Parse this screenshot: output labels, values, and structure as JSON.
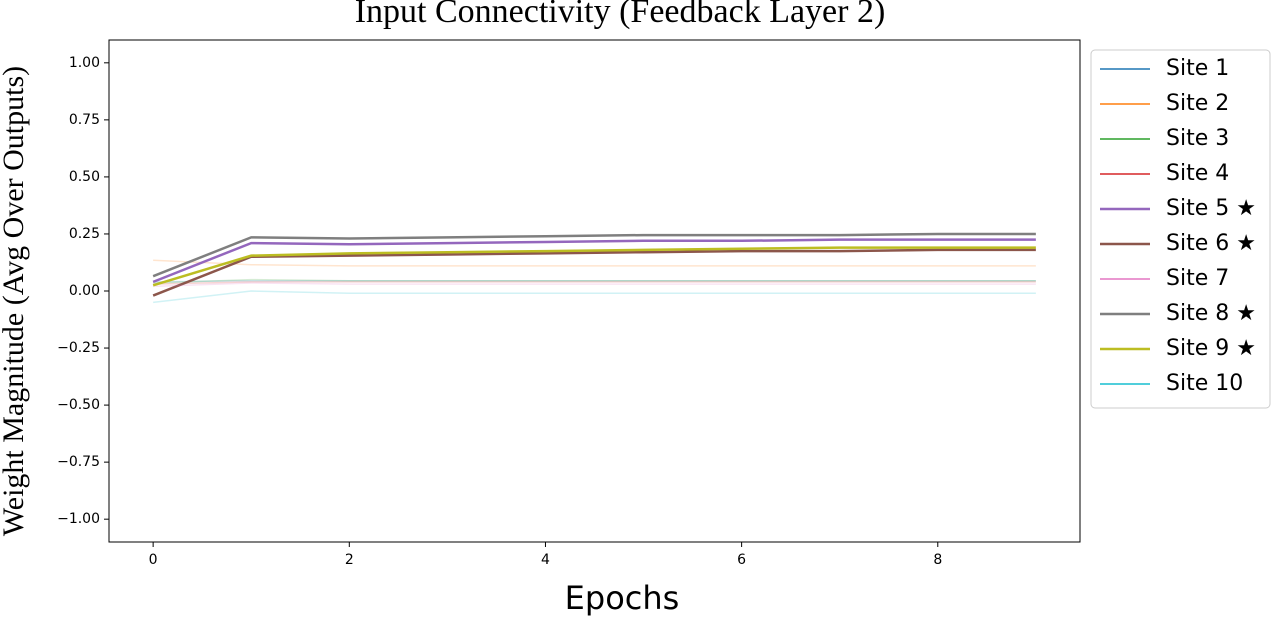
{
  "chart_data": {
    "type": "line",
    "title": "Input Connectivity (Feedback Layer 2)",
    "xlabel": "Epochs",
    "ylabel": "Weight Magnitude (Avg Over Outputs)",
    "x": [
      0,
      1,
      2,
      3,
      4,
      5,
      6,
      7,
      8,
      9
    ],
    "xlim": [
      -0.45,
      9.45
    ],
    "xticks": [
      0,
      2,
      4,
      6,
      8
    ],
    "ylim": [
      -1.1,
      1.1
    ],
    "yticks": [
      {
        "value": -1,
        "label": "−1.00"
      },
      {
        "value": -0.75,
        "label": "−0.75"
      },
      {
        "value": -0.5,
        "label": "−0.50"
      },
      {
        "value": -0.25,
        "label": "−0.25"
      },
      {
        "value": 0,
        "label": "0.00"
      },
      {
        "value": 0.25,
        "label": "0.25"
      },
      {
        "value": 0.5,
        "label": "0.50"
      },
      {
        "value": 0.75,
        "label": "0.75"
      },
      {
        "value": 1,
        "label": "1.00"
      }
    ],
    "legend": "outside-right",
    "series": [
      {
        "name": "Site 1",
        "color": "#1f77b4",
        "alpha": 0.2,
        "values": [
          0.04,
          0.045,
          0.045,
          0.045,
          0.045,
          0.045,
          0.045,
          0.045,
          0.045,
          0.045
        ]
      },
      {
        "name": "Site 2",
        "color": "#ff7f0e",
        "alpha": 0.2,
        "values": [
          0.135,
          0.115,
          0.11,
          0.11,
          0.11,
          0.11,
          0.11,
          0.11,
          0.11,
          0.11
        ]
      },
      {
        "name": "Site 3",
        "color": "#2ca02c",
        "alpha": 0.2,
        "values": [
          0.035,
          0.05,
          0.045,
          0.045,
          0.045,
          0.045,
          0.045,
          0.045,
          0.045,
          0.045
        ]
      },
      {
        "name": "Site 4",
        "color": "#d62728",
        "alpha": 0.2,
        "values": [
          0.03,
          0.04,
          0.04,
          0.04,
          0.04,
          0.04,
          0.04,
          0.04,
          0.04,
          0.04
        ]
      },
      {
        "name": "Site 5 ★",
        "color": "#9467bd",
        "alpha": 1,
        "values": [
          0.04,
          0.21,
          0.205,
          0.21,
          0.215,
          0.22,
          0.22,
          0.225,
          0.225,
          0.225
        ]
      },
      {
        "name": "Site 6 ★",
        "color": "#8c564b",
        "alpha": 1,
        "values": [
          -0.02,
          0.15,
          0.155,
          0.16,
          0.165,
          0.17,
          0.175,
          0.175,
          0.18,
          0.18
        ]
      },
      {
        "name": "Site 7",
        "color": "#e377c2",
        "alpha": 0.2,
        "values": [
          0.02,
          0.035,
          0.03,
          0.03,
          0.03,
          0.03,
          0.03,
          0.03,
          0.03,
          0.03
        ]
      },
      {
        "name": "Site 8 ★",
        "color": "#7f7f7f",
        "alpha": 1,
        "values": [
          0.065,
          0.235,
          0.23,
          0.235,
          0.24,
          0.245,
          0.245,
          0.245,
          0.25,
          0.25
        ]
      },
      {
        "name": "Site 9 ★",
        "color": "#bcbd22",
        "alpha": 1,
        "values": [
          0.025,
          0.155,
          0.165,
          0.17,
          0.175,
          0.18,
          0.185,
          0.19,
          0.19,
          0.19
        ]
      },
      {
        "name": "Site 10",
        "color": "#17becf",
        "alpha": 0.2,
        "values": [
          -0.05,
          0.0,
          -0.01,
          -0.01,
          -0.01,
          -0.01,
          -0.01,
          -0.01,
          -0.01,
          -0.01
        ]
      }
    ]
  }
}
